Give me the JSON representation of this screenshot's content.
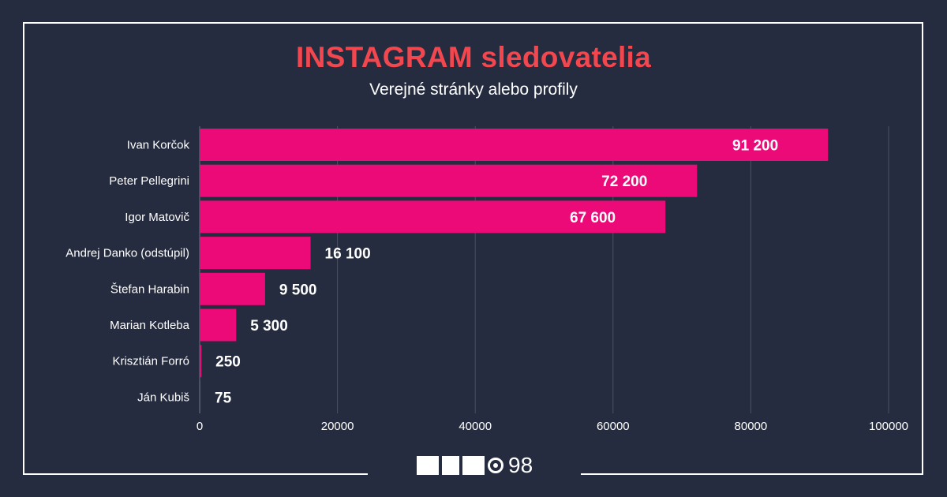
{
  "header": {
    "title": "INSTAGRAM sledovatelia",
    "subtitle": "Verejné stránky alebo profily"
  },
  "colors": {
    "background": "#262c3f",
    "title": "#f2474f",
    "bar": "#ec0a78",
    "grid": "#4a5166",
    "text": "#ffffff"
  },
  "chart_data": {
    "type": "bar",
    "orientation": "horizontal",
    "categories": [
      "Ivan Korčok",
      "Peter Pellegrini",
      "Igor Matovič",
      "Andrej Danko (odstúpil)",
      "Štefan Harabin",
      "Marian Kotleba",
      "Krisztián Forró",
      "Ján Kubiš"
    ],
    "values": [
      91200,
      72200,
      67600,
      16100,
      9500,
      5300,
      250,
      75
    ],
    "value_labels": [
      "91 200",
      "72 200",
      "67 600",
      "16 100",
      "9 500",
      "5 300",
      "250",
      "75"
    ],
    "title": "INSTAGRAM sledovatelia",
    "subtitle": "Verejné stránky alebo profily",
    "xlim": [
      0,
      100000
    ],
    "xticks": [
      0,
      20000,
      40000,
      60000,
      80000,
      100000
    ],
    "xtick_labels": [
      "0",
      "20000",
      "40000",
      "60000",
      "80000",
      "100000"
    ],
    "grid": "vertical",
    "legend": "none"
  },
  "logo": {
    "name": "memo98-logo",
    "number": "98"
  }
}
